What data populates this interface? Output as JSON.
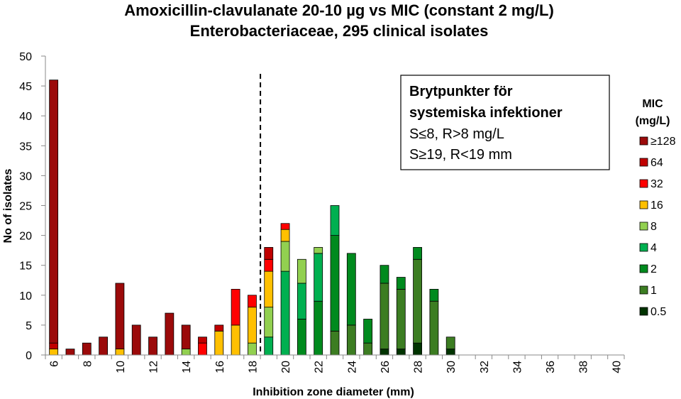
{
  "chart_data": {
    "type": "bar",
    "stacked": true,
    "title": "Amoxicillin-clavulanate 20-10 µg vs MIC (constant 2 mg/L)",
    "subtitle": "Enterobacteriaceae, 295 clinical isolates",
    "xlabel": "Inhibition zone diameter (mm)",
    "ylabel": "No of isolates",
    "xlim": [
      6,
      40
    ],
    "ylim": [
      0,
      50
    ],
    "yticks": [
      0,
      5,
      10,
      15,
      20,
      25,
      30,
      35,
      40,
      45,
      50
    ],
    "xticks": [
      6,
      8,
      10,
      12,
      14,
      16,
      18,
      20,
      22,
      24,
      26,
      28,
      30,
      32,
      34,
      36,
      38,
      40
    ],
    "grid": false,
    "breakpoint_line_between": [
      18,
      19
    ],
    "breakpoint_box": {
      "heading": [
        "Brytpunkter för",
        "systemiska infektioner"
      ],
      "lines": [
        "S≤8, R>8 mg/L",
        "S≥19, R<19 mm"
      ]
    },
    "legend": {
      "title": [
        "MIC",
        "(mg/L)"
      ],
      "placement": "right",
      "entries": [
        {
          "label": "≥128",
          "color": "#9B0A0A"
        },
        {
          "label": "64",
          "color": "#C00000"
        },
        {
          "label": "32",
          "color": "#FF0000"
        },
        {
          "label": "16",
          "color": "#FFC000"
        },
        {
          "label": "8",
          "color": "#92D050"
        },
        {
          "label": "4",
          "color": "#00B050"
        },
        {
          "label": "2",
          "color": "#008A1E"
        },
        {
          "label": "1",
          "color": "#3C7D22"
        },
        {
          "label": "0.5",
          "color": "#003300"
        }
      ]
    },
    "bars": [
      {
        "x": 6,
        "segments": [
          {
            "mic": "16",
            "value": 1
          },
          {
            "mic": "64",
            "value": 1
          },
          {
            "mic": "≥128",
            "value": 44
          }
        ]
      },
      {
        "x": 7,
        "segments": [
          {
            "mic": "≥128",
            "value": 1
          }
        ]
      },
      {
        "x": 8,
        "segments": [
          {
            "mic": "≥128",
            "value": 2
          }
        ]
      },
      {
        "x": 9,
        "segments": [
          {
            "mic": "≥128",
            "value": 3
          }
        ]
      },
      {
        "x": 10,
        "segments": [
          {
            "mic": "16",
            "value": 1
          },
          {
            "mic": "≥128",
            "value": 11
          }
        ]
      },
      {
        "x": 11,
        "segments": [
          {
            "mic": "≥128",
            "value": 5
          }
        ]
      },
      {
        "x": 12,
        "segments": [
          {
            "mic": "≥128",
            "value": 3
          }
        ]
      },
      {
        "x": 13,
        "segments": [
          {
            "mic": "≥128",
            "value": 7
          }
        ]
      },
      {
        "x": 14,
        "segments": [
          {
            "mic": "8",
            "value": 1
          },
          {
            "mic": "≥128",
            "value": 4
          }
        ]
      },
      {
        "x": 15,
        "segments": [
          {
            "mic": "32",
            "value": 2
          },
          {
            "mic": "64",
            "value": 1
          }
        ]
      },
      {
        "x": 16,
        "segments": [
          {
            "mic": "16",
            "value": 4
          },
          {
            "mic": "64",
            "value": 1
          }
        ]
      },
      {
        "x": 17,
        "segments": [
          {
            "mic": "16",
            "value": 5
          },
          {
            "mic": "32",
            "value": 6
          }
        ]
      },
      {
        "x": 18,
        "segments": [
          {
            "mic": "8",
            "value": 2
          },
          {
            "mic": "16",
            "value": 6
          },
          {
            "mic": "32",
            "value": 2
          }
        ]
      },
      {
        "x": 19,
        "segments": [
          {
            "mic": "4",
            "value": 3
          },
          {
            "mic": "8",
            "value": 5
          },
          {
            "mic": "16",
            "value": 6
          },
          {
            "mic": "32",
            "value": 2
          },
          {
            "mic": "64",
            "value": 2
          }
        ]
      },
      {
        "x": 20,
        "segments": [
          {
            "mic": "4",
            "value": 14
          },
          {
            "mic": "8",
            "value": 5
          },
          {
            "mic": "16",
            "value": 2
          },
          {
            "mic": "32",
            "value": 1
          }
        ]
      },
      {
        "x": 21,
        "segments": [
          {
            "mic": "2",
            "value": 6
          },
          {
            "mic": "4",
            "value": 6
          },
          {
            "mic": "8",
            "value": 4
          }
        ]
      },
      {
        "x": 22,
        "segments": [
          {
            "mic": "2",
            "value": 9
          },
          {
            "mic": "4",
            "value": 8
          },
          {
            "mic": "8",
            "value": 1
          }
        ]
      },
      {
        "x": 23,
        "segments": [
          {
            "mic": "1",
            "value": 4
          },
          {
            "mic": "2",
            "value": 16
          },
          {
            "mic": "4",
            "value": 5
          }
        ]
      },
      {
        "x": 24,
        "segments": [
          {
            "mic": "1",
            "value": 5
          },
          {
            "mic": "2",
            "value": 12
          }
        ]
      },
      {
        "x": 25,
        "segments": [
          {
            "mic": "1",
            "value": 2
          },
          {
            "mic": "2",
            "value": 4
          }
        ]
      },
      {
        "x": 26,
        "segments": [
          {
            "mic": "0.5",
            "value": 1
          },
          {
            "mic": "1",
            "value": 11
          },
          {
            "mic": "2",
            "value": 3
          }
        ]
      },
      {
        "x": 27,
        "segments": [
          {
            "mic": "0.5",
            "value": 1
          },
          {
            "mic": "1",
            "value": 10
          },
          {
            "mic": "2",
            "value": 2
          }
        ]
      },
      {
        "x": 28,
        "segments": [
          {
            "mic": "0.5",
            "value": 2
          },
          {
            "mic": "1",
            "value": 14
          },
          {
            "mic": "2",
            "value": 2
          }
        ]
      },
      {
        "x": 29,
        "segments": [
          {
            "mic": "1",
            "value": 9
          },
          {
            "mic": "2",
            "value": 2
          }
        ]
      },
      {
        "x": 30,
        "segments": [
          {
            "mic": "0.5",
            "value": 1
          },
          {
            "mic": "1",
            "value": 2
          }
        ]
      }
    ]
  }
}
